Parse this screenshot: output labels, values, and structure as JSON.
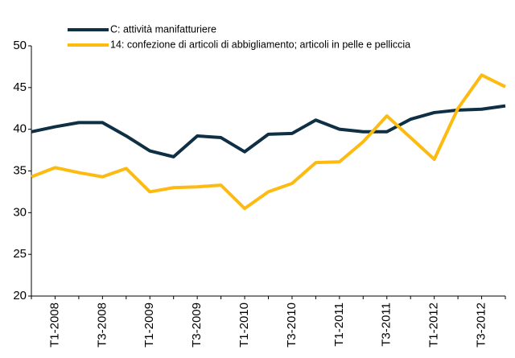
{
  "chart_data": {
    "type": "line",
    "categories": [
      null,
      "T1-2008",
      null,
      "T3-2008",
      null,
      "T1-2009",
      null,
      "T3-2009",
      null,
      "T1-2010",
      null,
      "T3-2010",
      null,
      "T1-2011",
      null,
      "T3-2011",
      null,
      "T1-2012",
      null,
      "T3-2012",
      null
    ],
    "series": [
      {
        "name": "C: attività manifatturiere",
        "color": "#0e2f44",
        "values": [
          39.7,
          40.3,
          40.8,
          40.8,
          39.2,
          37.4,
          36.7,
          39.2,
          39.0,
          37.3,
          39.4,
          39.5,
          41.1,
          40.0,
          39.7,
          39.7,
          41.2,
          42.0,
          42.3,
          42.4,
          42.8
        ]
      },
      {
        "name": "14: confezione di articoli di abbigliamento; articoli in pelle e pelliccia",
        "color": "#fdbb11",
        "values": [
          34.3,
          35.4,
          34.8,
          34.3,
          35.3,
          32.5,
          33.0,
          33.1,
          33.3,
          30.5,
          32.5,
          33.5,
          36.0,
          36.1,
          38.5,
          41.6,
          39.0,
          36.4,
          42.5,
          46.5,
          45.1
        ]
      }
    ],
    "ylim": [
      20,
      50
    ],
    "yticks": [
      20,
      25,
      30,
      35,
      40,
      45,
      50
    ],
    "grid": false
  }
}
